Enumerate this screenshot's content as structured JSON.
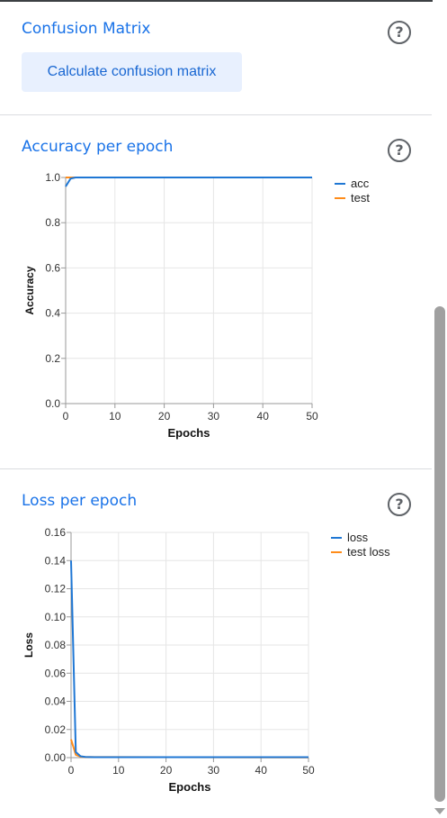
{
  "confusion": {
    "title": "Confusion Matrix",
    "button_label": "Calculate confusion matrix",
    "help_glyph": "?"
  },
  "accuracy": {
    "title": "Accuracy per epoch",
    "help_glyph": "?"
  },
  "loss": {
    "title": "Loss per epoch",
    "help_glyph": "?"
  },
  "chart_data": [
    {
      "type": "line",
      "title": "Accuracy per epoch",
      "xlabel": "Epochs",
      "ylabel": "Accuracy",
      "xlim": [
        0,
        50
      ],
      "ylim": [
        0,
        1.0
      ],
      "xticks": [
        0,
        10,
        20,
        30,
        40,
        50
      ],
      "yticks": [
        0.0,
        0.2,
        0.4,
        0.6,
        0.8,
        1.0
      ],
      "ytick_labels": [
        "0.0",
        "0.2",
        "0.4",
        "0.6",
        "0.8",
        "1.0"
      ],
      "grid": true,
      "legend": "right",
      "series": [
        {
          "name": "acc",
          "color": "#1f77d4",
          "x": [
            0,
            1,
            2,
            50
          ],
          "y": [
            0.96,
            0.995,
            1.0,
            1.0
          ]
        },
        {
          "name": "test",
          "color": "#ff8c1a",
          "x": [
            0,
            1,
            50
          ],
          "y": [
            1.0,
            1.0,
            1.0
          ]
        }
      ]
    },
    {
      "type": "line",
      "title": "Loss per epoch",
      "xlabel": "Epochs",
      "ylabel": "Loss",
      "xlim": [
        0,
        50
      ],
      "ylim": [
        0,
        0.16
      ],
      "xticks": [
        0,
        10,
        20,
        30,
        40,
        50
      ],
      "yticks": [
        0.0,
        0.02,
        0.04,
        0.06,
        0.08,
        0.1,
        0.12,
        0.14,
        0.16
      ],
      "ytick_labels": [
        "0.00",
        "0.02",
        "0.04",
        "0.06",
        "0.08",
        "0.10",
        "0.12",
        "0.14",
        "0.16"
      ],
      "grid": true,
      "legend": "right",
      "series": [
        {
          "name": "loss",
          "color": "#1f77d4",
          "x": [
            0,
            1,
            2,
            3,
            5,
            50
          ],
          "y": [
            0.14,
            0.004,
            0.001,
            0.0005,
            0.0003,
            0.0003
          ]
        },
        {
          "name": "test loss",
          "color": "#ff8c1a",
          "x": [
            0,
            1,
            2,
            3,
            50
          ],
          "y": [
            0.013,
            0.002,
            0.0007,
            0.0004,
            0.0002
          ]
        }
      ]
    }
  ]
}
